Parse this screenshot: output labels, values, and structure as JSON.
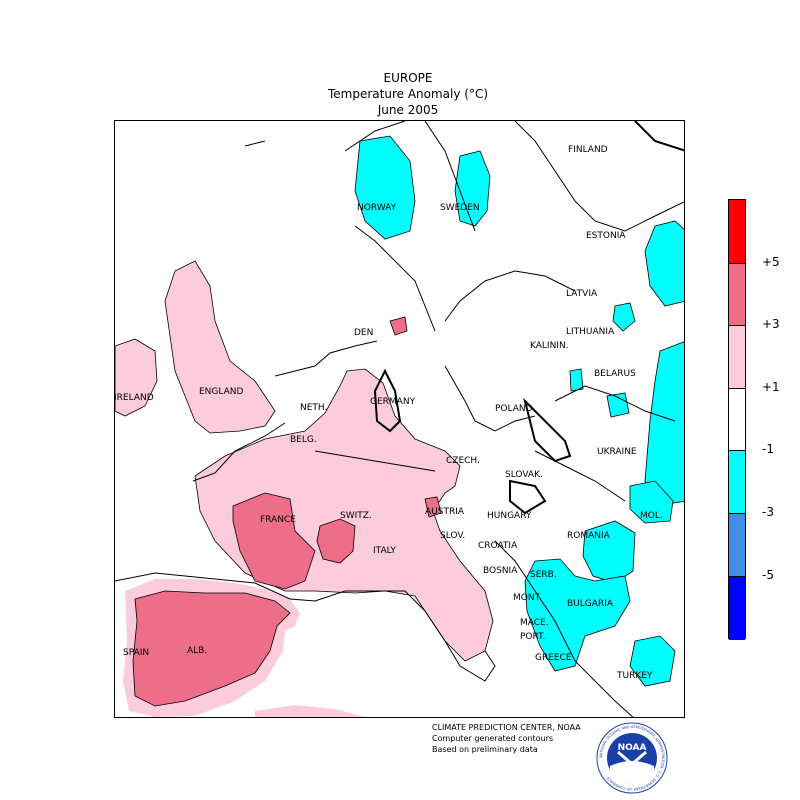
{
  "header": {
    "region": "EUROPE",
    "quantity": "Temperature Anomaly (°C)",
    "period": "June 2005"
  },
  "legend": {
    "bins": [
      {
        "color": "#ff0000",
        "label": "+5"
      },
      {
        "color": "#ee6e8a",
        "label": "+3"
      },
      {
        "color": "#fccbdc",
        "label": "+1"
      },
      {
        "color": "#ffffff",
        "label": "-1"
      },
      {
        "color": "#00ffff",
        "label": "-3"
      },
      {
        "color": "#3f8fe8",
        "label": "-5"
      },
      {
        "color": "#0000ff",
        "label": ""
      }
    ]
  },
  "countries": [
    "FINLAND",
    "NORWAY",
    "SWEDEN",
    "ESTONIA",
    "LATVIA",
    "DEN",
    "LITHUANIA",
    "KALININ.",
    "BELARUS",
    "IRELAND",
    "ENGLAND",
    "NETH.",
    "GERMANY",
    "POLAND",
    "BELG.",
    "UKRAINE",
    "CZECH.",
    "SLOVAK.",
    "FRANCE",
    "SWITZ.",
    "AUSTRIA",
    "HUNGARY",
    "MOL.",
    "SLOV.",
    "CROATIA",
    "ROMANIA",
    "ITALY",
    "BOSNIA",
    "SERB.",
    "BULGARIA",
    "MONT.",
    "MACE.",
    "PORT.",
    "SPAIN",
    "ALB.",
    "GREECE",
    "TURKEY"
  ],
  "credits": {
    "line1": "CLIMATE PREDICTION CENTER, NOAA",
    "line2": "Computer generated contours",
    "line3": "Based on preliminary data"
  },
  "logo": {
    "text": "NOAA",
    "ring_text": "NATIONAL OCEANIC AND ATMOSPHERIC ADMINISTRATION · U.S. DEPARTMENT OF COMMERCE"
  }
}
